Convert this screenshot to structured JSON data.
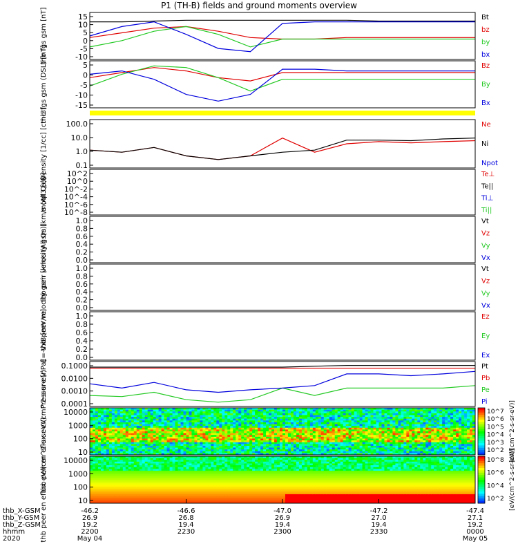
{
  "title": "P1 (TH-B) fields and ground moments overview",
  "colors": {
    "black": "#000000",
    "red": "#e00000",
    "green": "#22c922",
    "blue": "#0000dd",
    "yellow": "#ffff00"
  },
  "footer": {
    "rows": [
      {
        "label": "thb_X-GSM",
        "values": [
          "-46.2",
          "-46.6",
          "-47.0",
          "-47.2",
          "-47.4"
        ]
      },
      {
        "label": "thb_Y-GSM",
        "values": [
          "26.9",
          "26.8",
          "26.9",
          "27.0",
          "27.1"
        ]
      },
      {
        "label": "thb_Z-GSM",
        "values": [
          "19.2",
          "19.4",
          "19.4",
          "19.4",
          "19.2"
        ]
      },
      {
        "label": "hhmm",
        "values": [
          "2200",
          "2230",
          "2300",
          "2330",
          "0000"
        ]
      },
      {
        "label": "2020",
        "values": [
          "May 04",
          "",
          "",
          "",
          "May 05"
        ]
      }
    ]
  },
  "chart_data": [
    {
      "type": "line",
      "ylabel": "thb fgs gsm [nT]",
      "ylim": [
        -15,
        15
      ],
      "ticks": [
        "15",
        "10",
        "5",
        "0",
        "-5",
        "-10"
      ],
      "legend": [
        "Bt",
        "bz",
        "by",
        "bx"
      ],
      "series": [
        {
          "name": "Bt",
          "values": [
            9,
            9,
            9.5,
            10,
            10,
            10,
            10,
            10,
            10,
            9.5,
            9.5,
            9.5,
            9.5
          ]
        },
        {
          "name": "bz",
          "values": [
            -1,
            2,
            5,
            6,
            3,
            -1,
            -2,
            -2,
            -1,
            -1,
            -1,
            -1,
            -1
          ]
        },
        {
          "name": "by",
          "values": [
            -7,
            -3,
            3,
            6,
            1,
            -7,
            -2,
            -2,
            -2,
            -2,
            -2,
            -2,
            -2
          ]
        },
        {
          "name": "bx",
          "values": [
            0,
            6,
            9,
            1,
            -8,
            -10,
            8,
            9,
            9,
            9,
            9,
            9,
            9
          ]
        }
      ]
    },
    {
      "type": "line",
      "ylabel": "thb fgs gsm (DSL) [nT]",
      "ylim": [
        -18,
        10
      ],
      "ticks": [
        "5",
        "0",
        "-5",
        "-10",
        "-15"
      ],
      "legend": [
        "Bz",
        "By",
        "Bx"
      ],
      "series": [
        {
          "name": "Bz",
          "values": [
            0,
            3,
            6,
            4,
            0,
            -2,
            3,
            3,
            3,
            3,
            3,
            3,
            3
          ]
        },
        {
          "name": "By",
          "values": [
            -5,
            2,
            7,
            6,
            0,
            -8,
            -1,
            -1,
            -1,
            -1,
            -1,
            -1,
            -1
          ]
        },
        {
          "name": "Bx",
          "values": [
            2,
            4,
            -1,
            -10,
            -14,
            -10,
            5,
            5,
            4,
            4,
            4,
            4,
            4
          ]
        }
      ]
    },
    {
      "type": "line",
      "ylabel": "Density [1/cc] [cm-3]",
      "ylim": [
        0.01,
        100
      ],
      "ticks": [
        "100.0",
        "10.0",
        "1.0",
        "0.1"
      ],
      "legend": [
        "Ne",
        "Ni",
        "Npot"
      ],
      "series": [
        {
          "name": "Ne",
          "values": [
            0.3,
            0.2,
            0.5,
            0.1,
            0.05,
            0.1,
            3,
            0.2,
            1,
            1.5,
            1.2,
            1.5,
            1.8
          ]
        },
        {
          "name": "Ni",
          "values": [
            0.3,
            0.2,
            0.5,
            0.1,
            0.05,
            0.1,
            0.2,
            0.3,
            2,
            2,
            1.8,
            2.5,
            3
          ]
        }
      ]
    },
    {
      "type": "line",
      "ylabel": "moqt3 [eV]",
      "ylim": [
        1e-09,
        10000.0
      ],
      "ticks": [
        "10^2",
        "10^0",
        "10^-2",
        "10^-4",
        "10^-6",
        "10^-8"
      ],
      "legend": [
        "Te⊥",
        "Te||",
        "Ti⊥",
        "Ti||"
      ],
      "series": []
    },
    {
      "type": "line",
      "ylabel": "thb peir velocity gsm [km/s (All Qs)]",
      "ylim": [
        0,
        1
      ],
      "ticks": [
        "1.0",
        "0.8",
        "0.6",
        "0.4",
        "0.2",
        "0.0"
      ],
      "legend": [
        "Vt",
        "Vz",
        "Vy",
        "Vx"
      ],
      "series": []
    },
    {
      "type": "line",
      "ylabel": "thb peer velocity gsm [km/s (All Qs)]",
      "ylim": [
        0,
        1
      ],
      "ticks": [
        "1.0",
        "0.8",
        "0.6",
        "0.4",
        "0.2",
        "0.0"
      ],
      "legend": [
        "Vt",
        "Vz",
        "Vy",
        "Vx"
      ],
      "series": []
    },
    {
      "type": "line",
      "ylabel": "E=-VxB [mV/m]",
      "ylim": [
        0,
        1
      ],
      "ticks": [
        "1.0",
        "0.8",
        "0.6",
        "0.4",
        "0.2",
        "0.0"
      ],
      "legend": [
        "Ez",
        "Ey",
        "Ex"
      ],
      "series": []
    },
    {
      "type": "line",
      "ylabel": "Pressure [nPa]",
      "ylim": [
        0.0001,
        0.15
      ],
      "ticks": [
        "0.1000",
        "0.0100",
        "0.0010",
        "0.0001"
      ],
      "legend": [
        "Pt",
        "Pb",
        "Pe",
        "Pi"
      ],
      "series": [
        {
          "name": "Pt",
          "values": [
            0.06,
            0.06,
            0.06,
            0.06,
            0.06,
            0.06,
            0.06,
            0.07,
            0.08,
            0.08,
            0.08,
            0.08,
            0.08
          ]
        },
        {
          "name": "Pb",
          "values": [
            0.05,
            0.05,
            0.05,
            0.05,
            0.05,
            0.05,
            0.05,
            0.05,
            0.05,
            0.05,
            0.05,
            0.05,
            0.05
          ]
        },
        {
          "name": "Pe",
          "values": [
            0.0006,
            0.0005,
            0.001,
            0.0003,
            0.0002,
            0.0003,
            0.002,
            0.0006,
            0.002,
            0.002,
            0.002,
            0.002,
            0.003
          ]
        },
        {
          "name": "Pi",
          "values": [
            0.004,
            0.002,
            0.005,
            0.0015,
            0.001,
            0.0015,
            0.002,
            0.003,
            0.02,
            0.02,
            0.015,
            0.02,
            0.03
          ]
        }
      ]
    },
    {
      "type": "heatmap",
      "ylabel": "thb peir en eflux eV/(cm^2-s-sr-eV)",
      "ticks": [
        "10000",
        "1000",
        "100",
        "10"
      ],
      "colorbar": "[eV/(cm^2-s-sr-eV)]",
      "cbticks": [
        "10^7",
        "10^6",
        "10^5",
        "10^4",
        "10^3",
        "10^2"
      ]
    },
    {
      "type": "heatmap",
      "ylabel": "thb peer en eflux eV/(cm^2-s-sr-eV)",
      "ticks": [
        "10000",
        "1000",
        "100",
        "10"
      ],
      "colorbar": "[eV/(cm^2-s-sr-eV)]",
      "cbticks": [
        "10^8",
        "10^6",
        "10^4",
        "10^2"
      ]
    }
  ]
}
